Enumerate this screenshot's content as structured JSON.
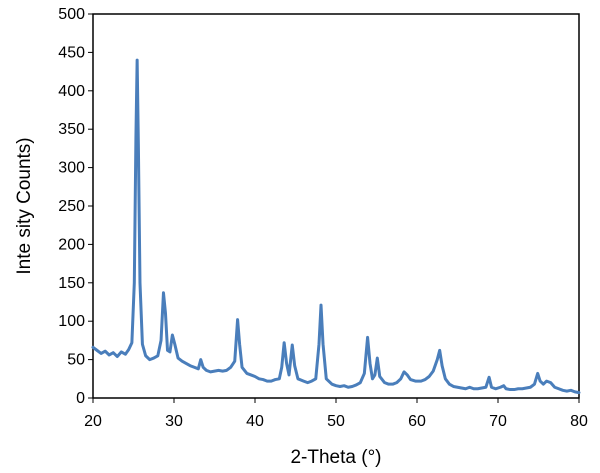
{
  "chart_data": {
    "type": "line",
    "title": "",
    "xlabel": "2-Theta (°)",
    "ylabel": "Inte sity Counts)",
    "xlim": [
      20,
      80
    ],
    "ylim": [
      0,
      500
    ],
    "x_ticks": [
      20,
      30,
      40,
      50,
      60,
      70,
      80
    ],
    "y_ticks": [
      0,
      50,
      100,
      150,
      200,
      250,
      300,
      350,
      400,
      450,
      500
    ],
    "grid": false,
    "legend": "none",
    "series": [
      {
        "color": "#4a7ebb",
        "points": [
          [
            20,
            66
          ],
          [
            20.5,
            62
          ],
          [
            21,
            58
          ],
          [
            21.5,
            61
          ],
          [
            22,
            56
          ],
          [
            22.5,
            59
          ],
          [
            23,
            54
          ],
          [
            23.5,
            60
          ],
          [
            24,
            57
          ],
          [
            24.4,
            63
          ],
          [
            24.8,
            72
          ],
          [
            25.1,
            150
          ],
          [
            25.3,
            340
          ],
          [
            25.45,
            440
          ],
          [
            25.6,
            330
          ],
          [
            25.8,
            150
          ],
          [
            26.1,
            70
          ],
          [
            26.5,
            55
          ],
          [
            27,
            50
          ],
          [
            27.5,
            52
          ],
          [
            28,
            55
          ],
          [
            28.4,
            75
          ],
          [
            28.7,
            137
          ],
          [
            28.95,
            110
          ],
          [
            29.2,
            62
          ],
          [
            29.5,
            60
          ],
          [
            29.8,
            82
          ],
          [
            30.1,
            70
          ],
          [
            30.5,
            52
          ],
          [
            31,
            48
          ],
          [
            31.5,
            45
          ],
          [
            32,
            42
          ],
          [
            32.5,
            40
          ],
          [
            33,
            38
          ],
          [
            33.3,
            50
          ],
          [
            33.6,
            40
          ],
          [
            34,
            36
          ],
          [
            34.5,
            34
          ],
          [
            35,
            35
          ],
          [
            35.5,
            36
          ],
          [
            36,
            35
          ],
          [
            36.5,
            36
          ],
          [
            37,
            40
          ],
          [
            37.5,
            48
          ],
          [
            37.85,
            102
          ],
          [
            38.1,
            70
          ],
          [
            38.4,
            40
          ],
          [
            39,
            32
          ],
          [
            39.5,
            30
          ],
          [
            40,
            28
          ],
          [
            40.5,
            25
          ],
          [
            41,
            24
          ],
          [
            41.5,
            22
          ],
          [
            42,
            22
          ],
          [
            42.5,
            24
          ],
          [
            43,
            25
          ],
          [
            43.3,
            40
          ],
          [
            43.6,
            72
          ],
          [
            43.9,
            45
          ],
          [
            44.2,
            30
          ],
          [
            44.6,
            69
          ],
          [
            44.9,
            42
          ],
          [
            45.3,
            25
          ],
          [
            46,
            22
          ],
          [
            46.5,
            20
          ],
          [
            47,
            22
          ],
          [
            47.5,
            25
          ],
          [
            47.9,
            70
          ],
          [
            48.15,
            121
          ],
          [
            48.4,
            70
          ],
          [
            48.8,
            25
          ],
          [
            49.5,
            18
          ],
          [
            50,
            16
          ],
          [
            50.5,
            15
          ],
          [
            51,
            16
          ],
          [
            51.5,
            14
          ],
          [
            52,
            15
          ],
          [
            52.5,
            17
          ],
          [
            53,
            20
          ],
          [
            53.5,
            32
          ],
          [
            53.9,
            79
          ],
          [
            54.2,
            45
          ],
          [
            54.5,
            25
          ],
          [
            54.8,
            30
          ],
          [
            55.1,
            52
          ],
          [
            55.4,
            28
          ],
          [
            56,
            20
          ],
          [
            56.5,
            18
          ],
          [
            57,
            18
          ],
          [
            57.5,
            20
          ],
          [
            58,
            25
          ],
          [
            58.4,
            34
          ],
          [
            58.8,
            30
          ],
          [
            59.2,
            24
          ],
          [
            59.8,
            22
          ],
          [
            60.5,
            22
          ],
          [
            61,
            24
          ],
          [
            61.5,
            28
          ],
          [
            62,
            35
          ],
          [
            62.5,
            50
          ],
          [
            62.8,
            62
          ],
          [
            63.1,
            42
          ],
          [
            63.5,
            25
          ],
          [
            64,
            18
          ],
          [
            64.5,
            15
          ],
          [
            65,
            14
          ],
          [
            65.5,
            13
          ],
          [
            66,
            12
          ],
          [
            66.5,
            14
          ],
          [
            67,
            12
          ],
          [
            67.5,
            12
          ],
          [
            68,
            13
          ],
          [
            68.5,
            14
          ],
          [
            68.9,
            27
          ],
          [
            69.2,
            14
          ],
          [
            69.7,
            12
          ],
          [
            70.3,
            14
          ],
          [
            70.7,
            16
          ],
          [
            71,
            12
          ],
          [
            71.5,
            11
          ],
          [
            72,
            11
          ],
          [
            72.5,
            12
          ],
          [
            73,
            12
          ],
          [
            73.5,
            13
          ],
          [
            74,
            14
          ],
          [
            74.5,
            18
          ],
          [
            74.9,
            32
          ],
          [
            75.2,
            22
          ],
          [
            75.6,
            18
          ],
          [
            76,
            22
          ],
          [
            76.5,
            20
          ],
          [
            77,
            14
          ],
          [
            77.5,
            12
          ],
          [
            78,
            10
          ],
          [
            78.5,
            9
          ],
          [
            79,
            10
          ],
          [
            79.5,
            8
          ],
          [
            80,
            7
          ]
        ]
      }
    ]
  }
}
